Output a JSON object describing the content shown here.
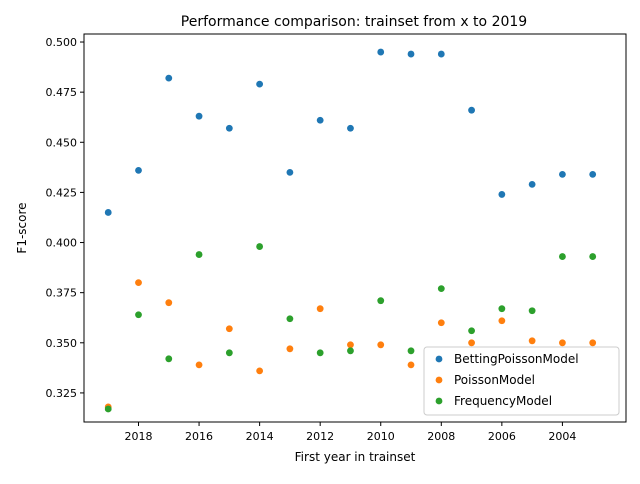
{
  "chart_data": {
    "type": "scatter",
    "title": "Performance comparison: trainset from x to 2019",
    "xlabel": "First year in trainset",
    "ylabel": "F1-score",
    "x_inverted": true,
    "xlim": [
      2019.8,
      2001.9
    ],
    "ylim": [
      0.3105,
      0.504
    ],
    "x_ticks": [
      2018,
      2016,
      2014,
      2012,
      2010,
      2008,
      2006,
      2004
    ],
    "y_ticks": [
      0.325,
      0.35,
      0.375,
      0.4,
      0.425,
      0.45,
      0.475,
      0.5
    ],
    "y_tick_labels": [
      "0.325",
      "0.350",
      "0.375",
      "0.400",
      "0.425",
      "0.450",
      "0.475",
      "0.500"
    ],
    "grid": false,
    "legend_position": "lower-right",
    "x": [
      2019,
      2018,
      2017,
      2016,
      2015,
      2014,
      2013,
      2012,
      2011,
      2010,
      2009,
      2008,
      2007,
      2006,
      2005,
      2004,
      2003
    ],
    "series": [
      {
        "name": "BettingPoissonModel",
        "color": "#1f77b4",
        "values": [
          0.415,
          0.436,
          0.482,
          0.463,
          0.457,
          0.479,
          0.435,
          0.461,
          0.457,
          0.495,
          0.494,
          0.494,
          0.466,
          0.424,
          0.429,
          0.434,
          0.434
        ]
      },
      {
        "name": "PoissonModel",
        "color": "#ff7f0e",
        "values": [
          0.318,
          0.38,
          0.37,
          0.339,
          0.357,
          0.336,
          0.347,
          0.367,
          0.349,
          0.349,
          0.339,
          0.36,
          0.35,
          0.361,
          0.351,
          0.35,
          0.35
        ]
      },
      {
        "name": "FrequencyModel",
        "color": "#2ca02c",
        "values": [
          0.317,
          0.364,
          0.342,
          0.394,
          0.345,
          0.398,
          0.362,
          0.345,
          0.346,
          0.371,
          0.346,
          0.377,
          0.356,
          0.367,
          0.366,
          0.393,
          0.393
        ]
      }
    ]
  }
}
